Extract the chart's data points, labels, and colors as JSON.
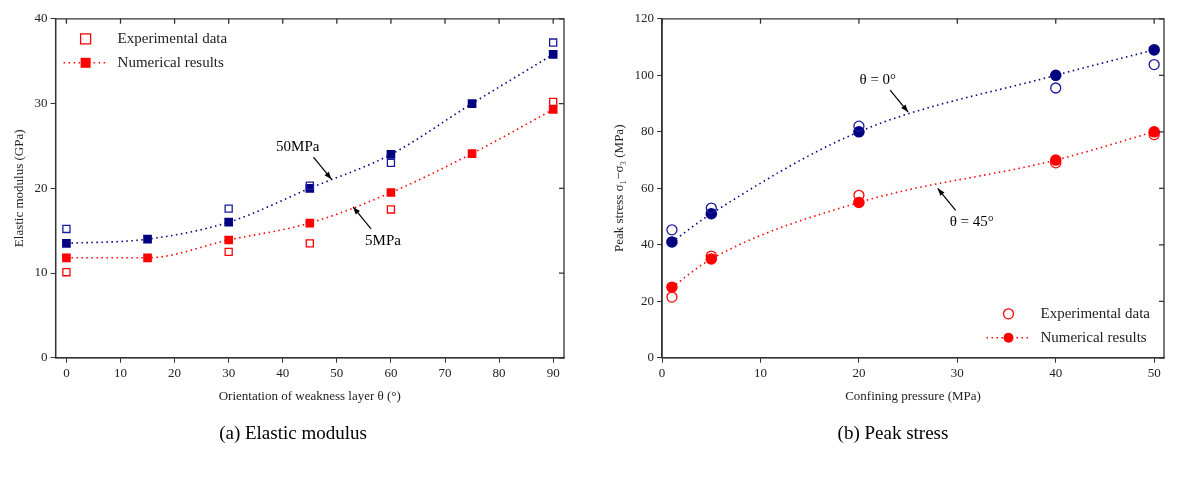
{
  "chart_data": [
    {
      "type": "line",
      "title": "(a)  Elastic modulus",
      "xlabel": "Orientation of weakness layer θ (°)",
      "ylabel": "Elastic modulus (GPa)",
      "xlim": [
        -2,
        92
      ],
      "ylim": [
        0,
        40
      ],
      "xticks": [
        0,
        10,
        20,
        30,
        40,
        50,
        60,
        70,
        80,
        90
      ],
      "yticks": [
        0,
        10,
        20,
        30,
        40
      ],
      "marker": "square",
      "line_style": "dotted",
      "legend": "top left",
      "grid": false,
      "annotations": [
        {
          "text": "50MPa",
          "x": 49,
          "y": 21.07
        },
        {
          "text": "5MPa",
          "x": 53,
          "y": 17.8
        }
      ],
      "series": [
        {
          "name": "Experimental data",
          "type": "scatter",
          "color": "#ff0000",
          "x": [
            0,
            30,
            45,
            60,
            90
          ],
          "values": [
            10.1,
            12.5,
            13.5,
            17.5,
            30.2
          ]
        },
        {
          "name": "Numerical results",
          "type": "line",
          "color": "#ff0000",
          "x": [
            0,
            15,
            30,
            45,
            60,
            75,
            90
          ],
          "values": [
            11.8,
            11.8,
            13.9,
            15.9,
            19.5,
            24.1,
            29.3
          ]
        },
        {
          "type": "scatter",
          "color": "#1a1aa0",
          "x": [
            0,
            30,
            45,
            60,
            90
          ],
          "values": [
            15.2,
            17.6,
            20.3,
            23,
            37.2
          ]
        },
        {
          "type": "line",
          "color": "#000080",
          "x": [
            0,
            15,
            30,
            45,
            60,
            75,
            90
          ],
          "values": [
            13.5,
            14,
            16,
            20,
            24,
            30,
            35.8
          ]
        }
      ]
    },
    {
      "type": "line",
      "title": "(b)  Peak stress",
      "xlabel": "Confining pressure (MPa)",
      "ylabel": "Peak stress σ₁−σ₃ (MPa)",
      "xlim": [
        0,
        51
      ],
      "ylim": [
        0,
        120
      ],
      "xticks": [
        0,
        10,
        20,
        30,
        40,
        50
      ],
      "yticks": [
        0,
        20,
        40,
        60,
        80,
        100,
        120
      ],
      "marker": "circle",
      "line_style": "dotted",
      "legend": "bottom right",
      "grid": false,
      "annotations": [
        {
          "text": "θ = 0°",
          "x": 25,
          "y": 87
        },
        {
          "text": "θ = 45°",
          "x": 28,
          "y": 60
        }
      ],
      "series": [
        {
          "name": "Experimental data",
          "type": "scatter",
          "color": "#ff0000",
          "x": [
            1,
            5,
            20,
            40,
            50
          ],
          "values": [
            21.5,
            36,
            57.5,
            69,
            79
          ]
        },
        {
          "name": "Numerical results",
          "type": "line",
          "color": "#ff0000",
          "x": [
            1,
            5,
            20,
            40,
            50
          ],
          "values": [
            25,
            35,
            55,
            70,
            80
          ]
        },
        {
          "type": "scatter",
          "color": "#1a1aa0",
          "x": [
            1,
            5,
            20,
            40,
            50
          ],
          "values": [
            45.3,
            53,
            82,
            95.5,
            103.8
          ]
        },
        {
          "type": "line",
          "color": "#000080",
          "x": [
            1,
            5,
            20,
            40,
            50
          ],
          "values": [
            41,
            51,
            80,
            100,
            109
          ]
        }
      ]
    }
  ]
}
